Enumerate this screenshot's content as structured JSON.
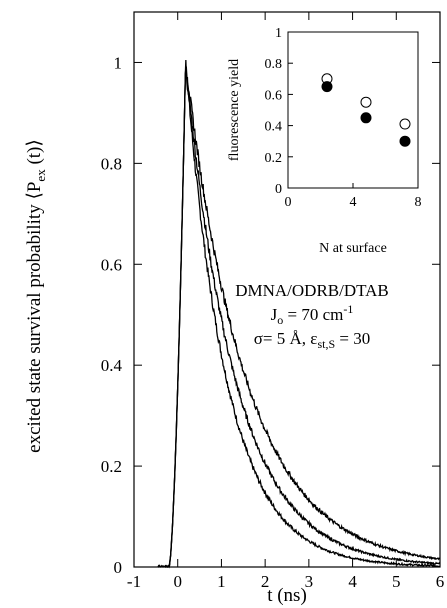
{
  "chart_data": [
    {
      "type": "line",
      "xlabel": "t (ns)",
      "ylabel": "excited state survival probability ⟨P",
      "ylabel_sub": "ex",
      "ylabel_end": " (t)⟩",
      "xlim": [
        -1,
        6
      ],
      "ylim": [
        0,
        1.1
      ],
      "x_ticks": [
        "-1",
        "0",
        "1",
        "2",
        "3",
        "4",
        "5",
        "6"
      ],
      "y_ticks": [
        "0",
        "0.2",
        "0.4",
        "0.6",
        "0.8",
        "1"
      ],
      "annotation": {
        "line1": "DMNA/ODRB/DTAB",
        "line2_a": "J",
        "line2_sub": "o",
        "line2_b": " = 70 cm",
        "line2_sup": "-1",
        "line3_a": "σ= 5 Å, ε",
        "line3_sub": "st,S",
        "line3_b": " = 30"
      },
      "peak": {
        "x": 0.18,
        "y": 1.0
      },
      "rise_start": -0.2,
      "series": [
        {
          "decay_ns": 0.95,
          "values_at": {
            "x": [
              0.18,
              1,
              2,
              3,
              4,
              5,
              6
            ],
            "y": [
              1.0,
              0.43,
              0.17,
              0.08,
              0.04,
              0.02,
              0.01
            ]
          }
        },
        {
          "decay_ns": 1.15,
          "values_at": {
            "x": [
              0.18,
              1,
              2,
              3,
              4,
              5,
              6
            ],
            "y": [
              1.0,
              0.5,
              0.22,
              0.11,
              0.05,
              0.025,
              0.012
            ]
          }
        },
        {
          "decay_ns": 1.4,
          "values_at": {
            "x": [
              0.18,
              1,
              2,
              3,
              4,
              5,
              6
            ],
            "y": [
              1.0,
              0.56,
              0.29,
              0.15,
              0.08,
              0.04,
              0.02
            ]
          }
        }
      ],
      "grid": false
    },
    {
      "type": "scatter",
      "xlabel": "N at surface",
      "ylabel": "fluorescence yield",
      "xlim": [
        0,
        8
      ],
      "ylim": [
        0,
        1
      ],
      "x_ticks": [
        "0",
        "4",
        "8"
      ],
      "y_ticks": [
        "0",
        "0.2",
        "0.4",
        "0.6",
        "0.8",
        "1"
      ],
      "series": [
        {
          "marker": "open-circle",
          "points": [
            [
              2.4,
              0.7
            ],
            [
              4.8,
              0.55
            ],
            [
              7.2,
              0.41
            ]
          ]
        },
        {
          "marker": "filled-circle",
          "points": [
            [
              2.4,
              0.65
            ],
            [
              4.8,
              0.45
            ],
            [
              7.2,
              0.3
            ]
          ]
        }
      ],
      "grid": false
    }
  ]
}
